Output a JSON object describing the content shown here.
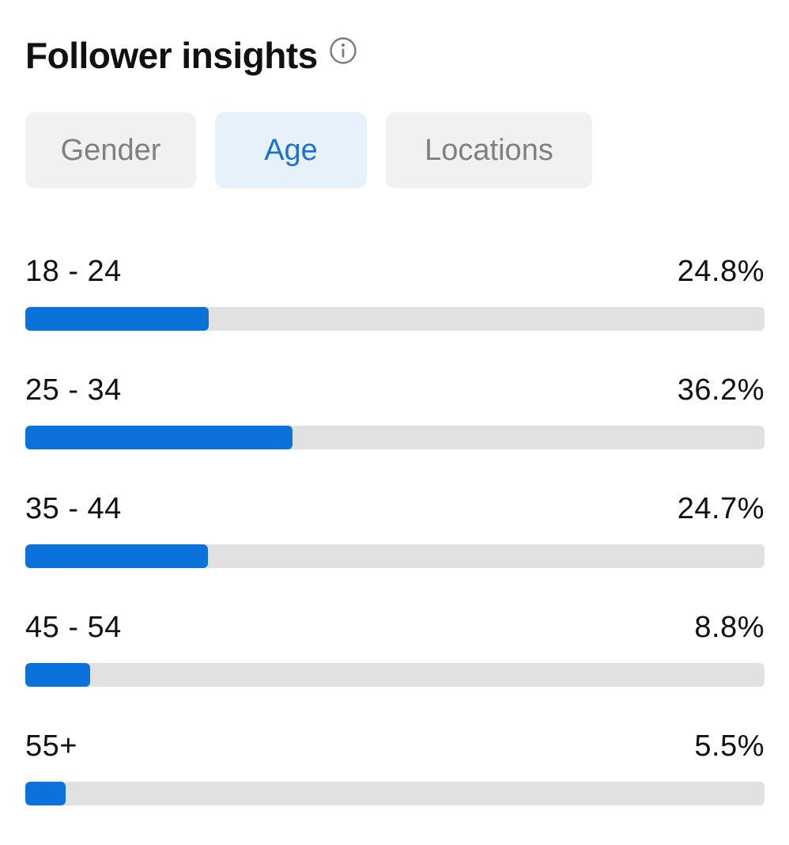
{
  "header": {
    "title": "Follower insights",
    "info_icon": "info-icon"
  },
  "tabs": [
    {
      "label": "Gender",
      "active": false
    },
    {
      "label": "Age",
      "active": true
    },
    {
      "label": "Locations",
      "active": false
    }
  ],
  "age_rows": [
    {
      "label": "18 - 24",
      "value": "24.8%",
      "fraction": 0.248
    },
    {
      "label": "25 - 34",
      "value": "36.2%",
      "fraction": 0.362
    },
    {
      "label": "35 - 44",
      "value": "24.7%",
      "fraction": 0.247
    },
    {
      "label": "45 - 54",
      "value": "8.8%",
      "fraction": 0.088
    },
    {
      "label": "55+",
      "value": "5.5%",
      "fraction": 0.055
    }
  ],
  "colors": {
    "accent": "#0a72d8",
    "active_tab_bg": "#e6f1fb",
    "active_tab_text": "#1a73d1",
    "tab_bg": "#f1f1f2",
    "track": "#e1e1e1"
  }
}
